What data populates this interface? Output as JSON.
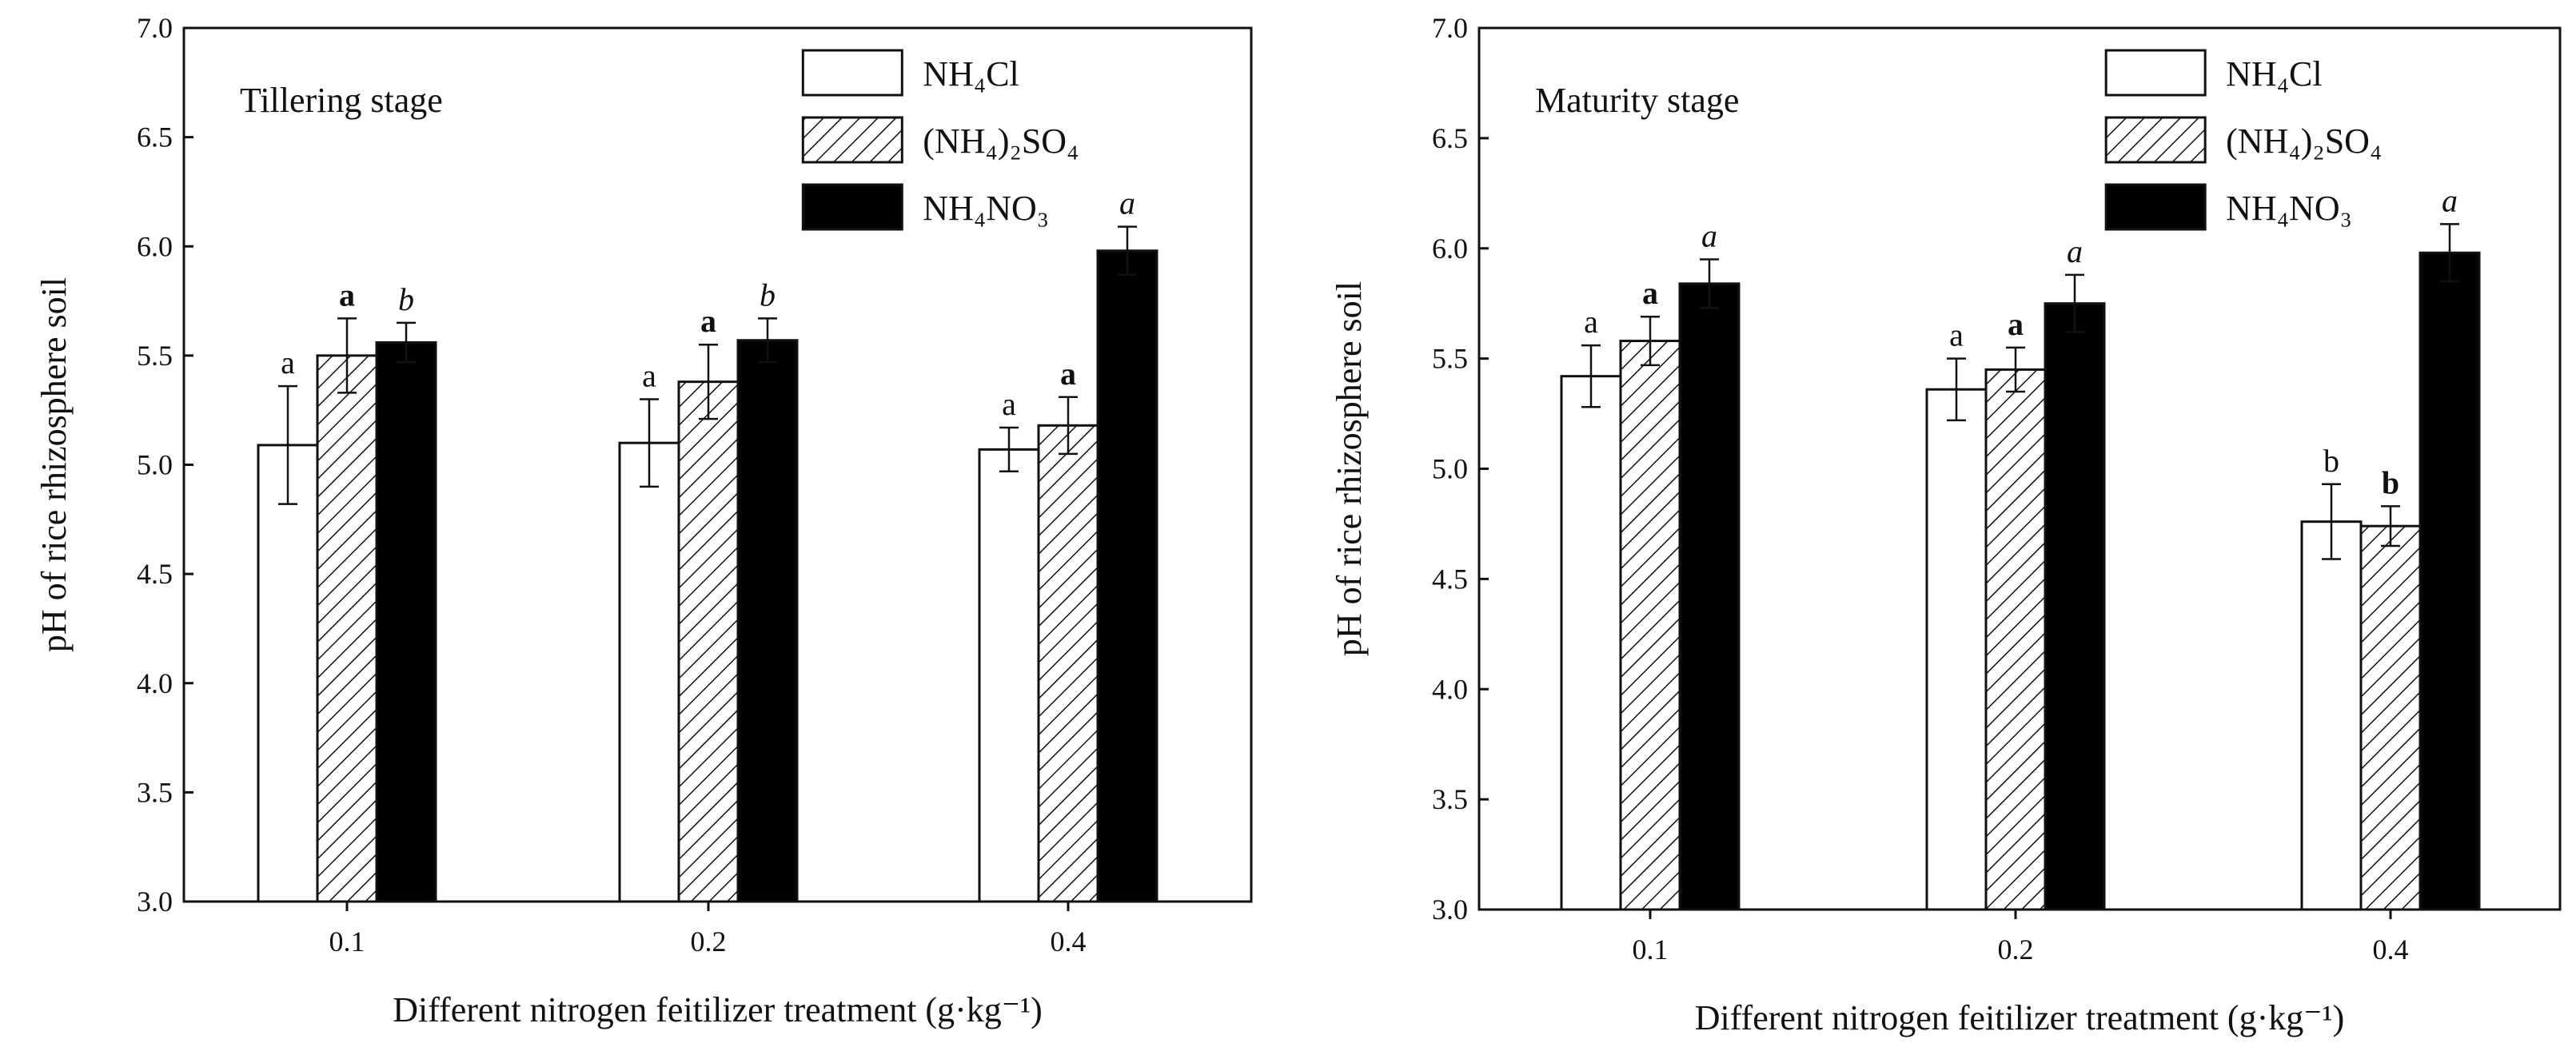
{
  "colors": {
    "ink": "#111111",
    "paper": "#ffffff",
    "nh4no3_fill": "#000000"
  },
  "chart_data": [
    {
      "type": "bar",
      "title": "Tillering stage",
      "xlabel": "Different nitrogen feitilizer treatment (g·kg⁻¹)",
      "ylabel": "pH of rice rhizosphere soil",
      "ylim": [
        3.0,
        7.0
      ],
      "yticks": [
        "3.0",
        "3.5",
        "4.0",
        "4.5",
        "5.0",
        "5.5",
        "6.0",
        "6.5",
        "7.0"
      ],
      "categories": [
        "0.1",
        "0.2",
        "0.4"
      ],
      "legend_position": "top-right",
      "series": [
        {
          "name": "NH₄Cl",
          "pattern": "open",
          "values": [
            5.09,
            5.1,
            5.07
          ],
          "errors": [
            0.27,
            0.2,
            0.1
          ],
          "labels": [
            "a",
            "a",
            "a"
          ],
          "label_style": "normal"
        },
        {
          "name": "(NH₄)₂SO₄",
          "pattern": "hatch",
          "values": [
            5.5,
            5.38,
            5.18
          ],
          "errors": [
            0.17,
            0.17,
            0.13
          ],
          "labels": [
            "a",
            "a",
            "a"
          ],
          "label_style": "bold"
        },
        {
          "name": "NH₄NO₃",
          "pattern": "solid",
          "values": [
            5.56,
            5.57,
            5.98
          ],
          "errors": [
            0.09,
            0.1,
            0.11
          ],
          "labels": [
            "b",
            "b",
            "a"
          ],
          "label_style": "italic"
        }
      ]
    },
    {
      "type": "bar",
      "title": "Maturity stage",
      "xlabel": "Different nitrogen feitilizer treatment (g·kg⁻¹)",
      "ylabel": "pH of rice rhizosphere soil",
      "ylim": [
        3.0,
        7.0
      ],
      "yticks": [
        "3.0",
        "3.5",
        "4.0",
        "4.5",
        "5.0",
        "5.5",
        "6.0",
        "6.5",
        "7.0"
      ],
      "categories": [
        "0.1",
        "0.2",
        "0.4"
      ],
      "legend_position": "top-right",
      "series": [
        {
          "name": "NH₄Cl",
          "pattern": "open",
          "values": [
            5.42,
            5.36,
            4.76
          ],
          "errors": [
            0.14,
            0.14,
            0.17
          ],
          "labels": [
            "a",
            "a",
            "b"
          ],
          "label_style": "normal"
        },
        {
          "name": "(NH₄)₂SO₄",
          "pattern": "hatch",
          "values": [
            5.58,
            5.45,
            4.74
          ],
          "errors": [
            0.11,
            0.1,
            0.09
          ],
          "labels": [
            "a",
            "a",
            "b"
          ],
          "label_style": "bold"
        },
        {
          "name": "NH₄NO₃",
          "pattern": "solid",
          "values": [
            5.84,
            5.75,
            5.98
          ],
          "errors": [
            0.11,
            0.13,
            0.13
          ],
          "labels": [
            "a",
            "a",
            "a"
          ],
          "label_style": "italic"
        }
      ]
    }
  ]
}
